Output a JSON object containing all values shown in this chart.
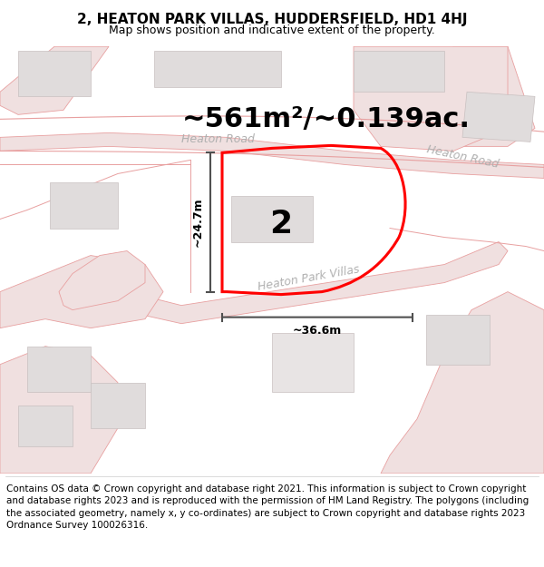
{
  "title": "2, HEATON PARK VILLAS, HUDDERSFIELD, HD1 4HJ",
  "subtitle": "Map shows position and indicative extent of the property.",
  "area_text": "~561m²/~0.139ac.",
  "label_number": "2",
  "dim_height": "~24.7m",
  "dim_width": "~36.6m",
  "road_label1": "Heaton Road",
  "road_label2": "Heaton Road",
  "road_label3": "Heaton Park Villas",
  "footer": "Contains OS data © Crown copyright and database right 2021. This information is subject to Crown copyright and database rights 2023 and is reproduced with the permission of HM Land Registry. The polygons (including the associated geometry, namely x, y co-ordinates) are subject to Crown copyright and database rights 2023 Ordnance Survey 100026316.",
  "bg_color": "#f5f0f0",
  "map_bg": "#ffffff",
  "red_color": "#ff0000",
  "road_line_color": "#e8a0a0",
  "road_fill_color": "#f0e0e0",
  "building_color": "#e0dcdc",
  "building_edge": "#c8c0c0",
  "dim_color": "#505050",
  "title_fontsize": 11,
  "subtitle_fontsize": 9,
  "area_fontsize": 22,
  "footer_fontsize": 7.5,
  "road_label_color": "#b0b0b0",
  "dim_text_fontsize": 9
}
